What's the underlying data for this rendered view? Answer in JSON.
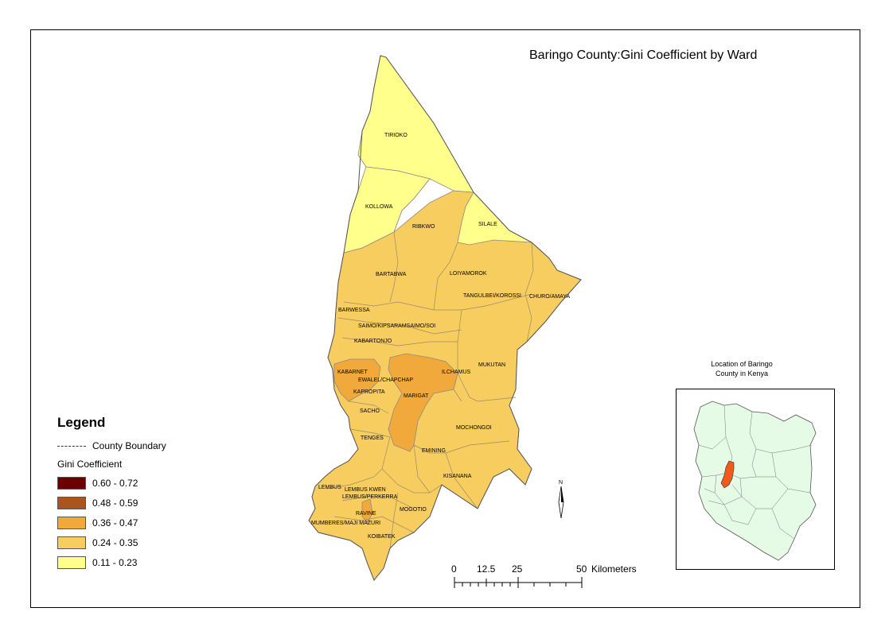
{
  "title": "Baringo County:Gini Coefficient by Ward",
  "legend": {
    "title": "Legend",
    "boundary_label": "County Boundary",
    "subtitle": "Gini Coefficient",
    "classes": [
      {
        "label": "0.60 - 0.72",
        "color": "#6b0000"
      },
      {
        "label": "0.48 - 0.59",
        "color": "#a85520"
      },
      {
        "label": "0.36 - 0.47",
        "color": "#f2a93b"
      },
      {
        "label": "0.24 - 0.35",
        "color": "#f8cd5f"
      },
      {
        "label": "0.11 - 0.23",
        "color": "#ffff8c"
      }
    ]
  },
  "wards": [
    {
      "name": "TIRIOKO",
      "class": "0.11 - 0.23"
    },
    {
      "name": "KOLLOWA",
      "class": "0.11 - 0.23"
    },
    {
      "name": "SILALE",
      "class": "0.11 - 0.23"
    },
    {
      "name": "RIBKWO",
      "class": "0.24 - 0.35"
    },
    {
      "name": "BARTABWA",
      "class": "0.24 - 0.35"
    },
    {
      "name": "LOIYAMOROK",
      "class": "0.24 - 0.35"
    },
    {
      "name": "TANGULBEI/KOROSSI",
      "class": "0.24 - 0.35"
    },
    {
      "name": "CHURO/AMAYA",
      "class": "0.24 - 0.35"
    },
    {
      "name": "BARWESSA",
      "class": "0.24 - 0.35"
    },
    {
      "name": "SAIMO/KIPSARAMSAIMO/SOI",
      "class": "0.24 - 0.35"
    },
    {
      "name": "KABARTONJO",
      "class": "0.24 - 0.35"
    },
    {
      "name": "KABARNET",
      "class": "0.36 - 0.47"
    },
    {
      "name": "EWALEL/CHAPCHAP",
      "class": "0.24 - 0.35"
    },
    {
      "name": "ILCHAMUS",
      "class": "0.24 - 0.35"
    },
    {
      "name": "MUKUTAN",
      "class": "0.24 - 0.35"
    },
    {
      "name": "KAPROPITA",
      "class": "0.24 - 0.35"
    },
    {
      "name": "MARIGAT",
      "class": "0.36 - 0.47"
    },
    {
      "name": "SACHO",
      "class": "0.24 - 0.35"
    },
    {
      "name": "MOCHONGOI",
      "class": "0.24 - 0.35"
    },
    {
      "name": "TENGES",
      "class": "0.24 - 0.35"
    },
    {
      "name": "EMINING",
      "class": "0.24 - 0.35"
    },
    {
      "name": "KISANANA",
      "class": "0.24 - 0.35"
    },
    {
      "name": "LEMBUS",
      "class": "0.24 - 0.35"
    },
    {
      "name": "LEMBUS KWEN",
      "class": "0.24 - 0.35"
    },
    {
      "name": "LEMBUS/PERKERRA",
      "class": "0.24 - 0.35"
    },
    {
      "name": "MOGOTIO",
      "class": "0.24 - 0.35"
    },
    {
      "name": "RAVINE",
      "class": "0.36 - 0.47"
    },
    {
      "name": "MUMBERES/MAJI MAZURI",
      "class": "0.24 - 0.35"
    },
    {
      "name": "KOIBATEK",
      "class": "0.24 - 0.35"
    }
  ],
  "north_arrow": {
    "label": "N"
  },
  "scale_bar": {
    "ticks": [
      "0",
      "12.5",
      "25",
      "50"
    ],
    "unit": "Kilometers"
  },
  "inset": {
    "title_line1": "Location of Baringo",
    "title_line2": "County in Kenya",
    "country_color": "#e6fbe6",
    "highlight_color": "#f05a1a"
  }
}
